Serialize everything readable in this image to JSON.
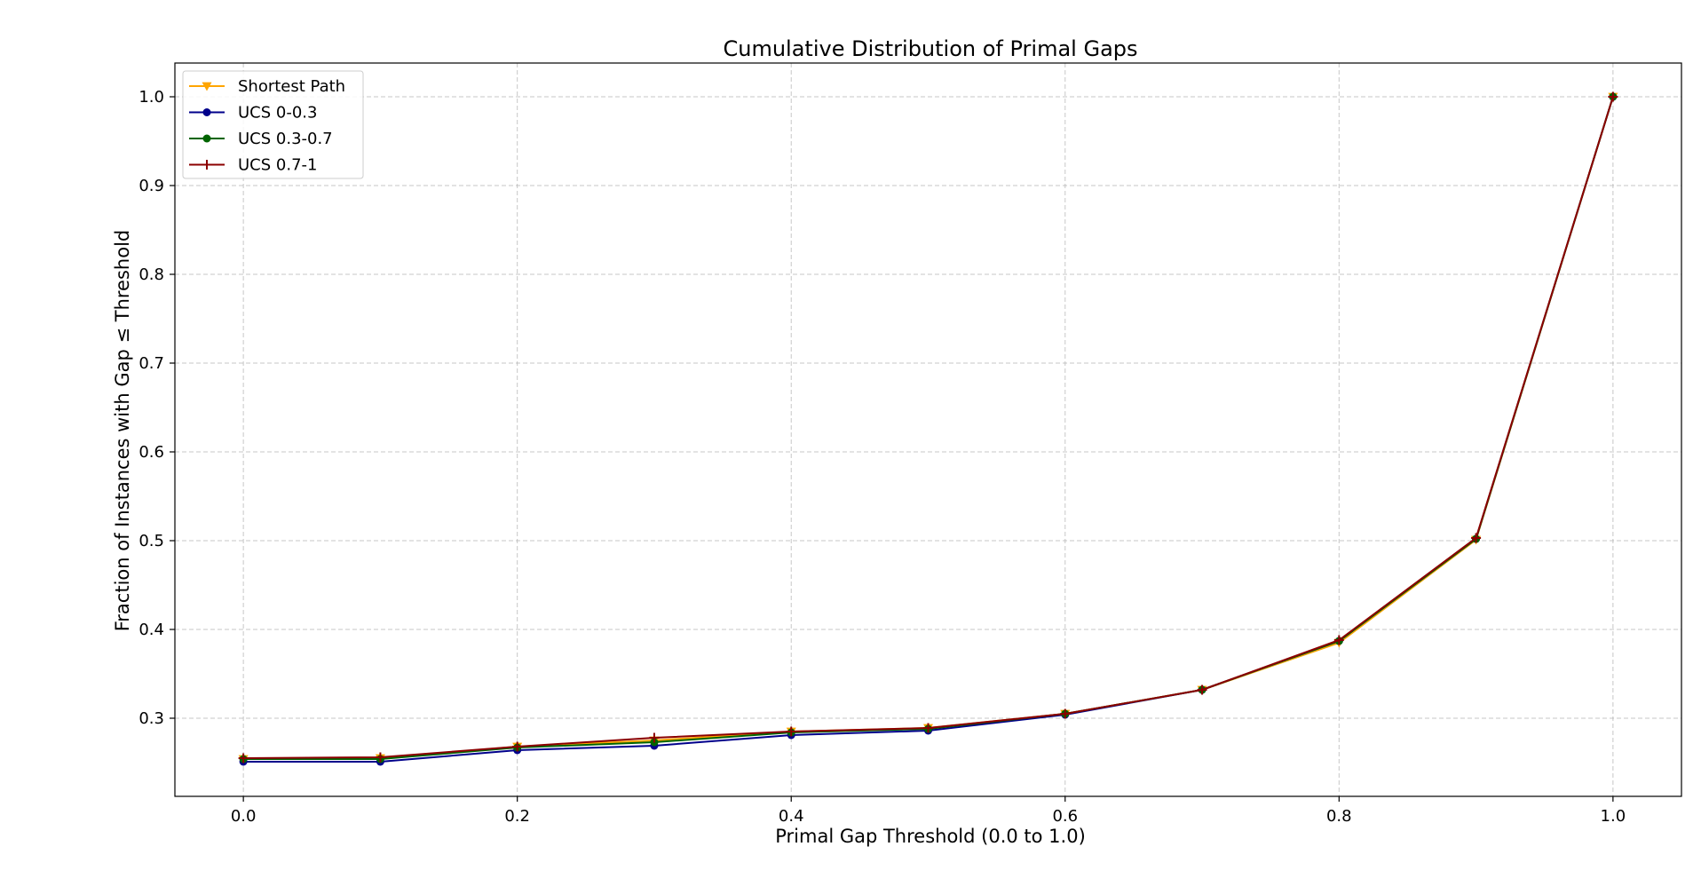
{
  "chart_data": {
    "type": "line",
    "title": "Cumulative Distribution of Primal Gaps",
    "xlabel": "Primal Gap Threshold (0.0 to 1.0)",
    "ylabel": "Fraction of Instances with Gap ≤ Threshold",
    "xlim": [
      -0.05,
      1.05
    ],
    "ylim": [
      0.212,
      1.038
    ],
    "x_ticks": [
      0.0,
      0.2,
      0.4,
      0.6,
      0.8,
      1.0
    ],
    "x_tick_labels": [
      "0.0",
      "0.2",
      "0.4",
      "0.6",
      "0.8",
      "1.0"
    ],
    "y_ticks": [
      0.3,
      0.4,
      0.5,
      0.6,
      0.7,
      0.8,
      0.9,
      1.0
    ],
    "y_tick_labels": [
      "0.3",
      "0.4",
      "0.5",
      "0.6",
      "0.7",
      "0.8",
      "0.9",
      "1.0"
    ],
    "grid": true,
    "legend_position": "top-left",
    "x": [
      0.0,
      0.1,
      0.2,
      0.3,
      0.4,
      0.5,
      0.6,
      0.7,
      0.8,
      0.9,
      1.0
    ],
    "series": [
      {
        "name": "Shortest Path",
        "color": "#ffa500",
        "marker": "triangle-down",
        "values": [
          0.254,
          0.255,
          0.268,
          0.275,
          0.285,
          0.289,
          0.305,
          0.332,
          0.385,
          0.501,
          1.0
        ]
      },
      {
        "name": "UCS 0-0.3",
        "color": "#00008b",
        "marker": "circle",
        "values": [
          0.251,
          0.251,
          0.264,
          0.269,
          0.281,
          0.286,
          0.304,
          0.332,
          0.387,
          0.502,
          1.0
        ]
      },
      {
        "name": "UCS 0.3-0.7",
        "color": "#006400",
        "marker": "circle",
        "values": [
          0.254,
          0.254,
          0.267,
          0.273,
          0.284,
          0.288,
          0.305,
          0.332,
          0.387,
          0.502,
          1.0
        ]
      },
      {
        "name": "UCS 0.7-1",
        "color": "#8b0000",
        "marker": "plus",
        "values": [
          0.255,
          0.256,
          0.268,
          0.278,
          0.285,
          0.289,
          0.305,
          0.332,
          0.388,
          0.503,
          1.0
        ]
      }
    ]
  }
}
